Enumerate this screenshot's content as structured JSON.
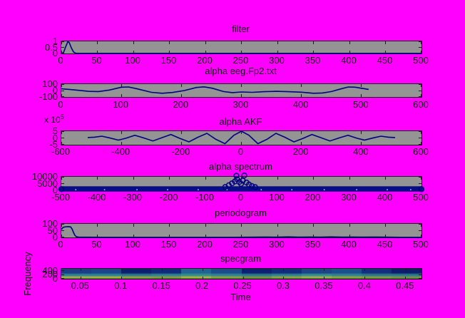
{
  "figure": {
    "background": "#ff00ff",
    "axes_background": "#949494",
    "axis_border_color": "#1b1b1b",
    "line_color": "#000080",
    "marker_color": "#000080",
    "band_color": "#0a0e86",
    "speckle_color": "#c9cde6"
  },
  "chart_data": [
    {
      "type": "line",
      "title": "filter",
      "xlim": [
        0,
        500
      ],
      "xtick_values": [
        0,
        50,
        100,
        150,
        200,
        250,
        300,
        350,
        400,
        450,
        500
      ],
      "xtick_labels": [
        "0",
        "50",
        "100",
        "150",
        "200",
        "250",
        "300",
        "350",
        "400",
        "450",
        "500"
      ],
      "ylim": [
        0,
        1
      ],
      "ytick_values": [
        1,
        0.5,
        0
      ],
      "ytick_labels": [
        "1",
        "0.5",
        "0"
      ],
      "points": [
        [
          0,
          0.02
        ],
        [
          3,
          0.06
        ],
        [
          6,
          0.55
        ],
        [
          9,
          0.97
        ],
        [
          11,
          0.9
        ],
        [
          14,
          0.45
        ],
        [
          17,
          0.12
        ],
        [
          20,
          0.02
        ],
        [
          30,
          0.01
        ],
        [
          500,
          0.01
        ]
      ]
    },
    {
      "type": "line",
      "title": "alpha eeg.Fp2.txt",
      "xlim": [
        0,
        600
      ],
      "xtick_values": [
        0,
        100,
        200,
        300,
        400,
        500,
        600
      ],
      "xtick_labels": [
        "0",
        "100",
        "200",
        "300",
        "400",
        "500",
        "600"
      ],
      "ylim": [
        -100,
        100
      ],
      "ytick_values": [
        100,
        0,
        -100
      ],
      "ytick_labels": [
        "100",
        "0",
        "-100"
      ],
      "points": [
        [
          0,
          28
        ],
        [
          20,
          12
        ],
        [
          45,
          -12
        ],
        [
          62,
          -16
        ],
        [
          80,
          8
        ],
        [
          100,
          52
        ],
        [
          112,
          55
        ],
        [
          125,
          30
        ],
        [
          150,
          -28
        ],
        [
          168,
          -42
        ],
        [
          185,
          -30
        ],
        [
          205,
          0
        ],
        [
          225,
          48
        ],
        [
          238,
          58
        ],
        [
          252,
          35
        ],
        [
          270,
          -15
        ],
        [
          285,
          -32
        ],
        [
          300,
          -22
        ],
        [
          318,
          -28
        ],
        [
          338,
          -18
        ],
        [
          358,
          -12
        ],
        [
          378,
          -18
        ],
        [
          400,
          -25
        ],
        [
          420,
          -42
        ],
        [
          435,
          -38
        ],
        [
          450,
          -15
        ],
        [
          465,
          25
        ],
        [
          478,
          55
        ],
        [
          490,
          52
        ],
        [
          500,
          35
        ],
        [
          512,
          18
        ]
      ]
    },
    {
      "type": "line",
      "title": "alpha AKF",
      "multiplier_base": "x 10",
      "multiplier_exp": "5",
      "xlim": [
        -600,
        600
      ],
      "xtick_values": [
        -600,
        -400,
        -200,
        0,
        200,
        400,
        600
      ],
      "xtick_labels": [
        "-600",
        "-400",
        "-200",
        "0",
        "200",
        "400",
        "600"
      ],
      "ylim": [
        -5,
        5
      ],
      "ytick_values": [
        5,
        0,
        -5
      ],
      "ytick_labels": [
        "5",
        "0",
        "-5"
      ],
      "points": [
        [
          -512,
          0.3
        ],
        [
          -490,
          0.6
        ],
        [
          -465,
          1.3
        ],
        [
          -440,
          0.1
        ],
        [
          -410,
          -1.6
        ],
        [
          -385,
          -0.2
        ],
        [
          -355,
          2.0
        ],
        [
          -325,
          0
        ],
        [
          -295,
          -2.2
        ],
        [
          -265,
          0.2
        ],
        [
          -235,
          2.6
        ],
        [
          -205,
          -0.3
        ],
        [
          -175,
          -2.9
        ],
        [
          -145,
          0.5
        ],
        [
          -115,
          3.4
        ],
        [
          -85,
          -1
        ],
        [
          -55,
          -4.2
        ],
        [
          -25,
          2
        ],
        [
          0,
          5
        ],
        [
          25,
          2
        ],
        [
          55,
          -4.2
        ],
        [
          85,
          -1
        ],
        [
          115,
          3.4
        ],
        [
          145,
          0.5
        ],
        [
          175,
          -2.9
        ],
        [
          205,
          -0.3
        ],
        [
          235,
          2.6
        ],
        [
          265,
          0.2
        ],
        [
          295,
          -2.2
        ],
        [
          325,
          0
        ],
        [
          355,
          2.0
        ],
        [
          385,
          -0.2
        ],
        [
          410,
          -1.6
        ],
        [
          440,
          0.1
        ],
        [
          465,
          1.3
        ],
        [
          490,
          0.6
        ],
        [
          512,
          0.3
        ]
      ]
    },
    {
      "type": "scatter",
      "title": "alpha spectrum",
      "xlim": [
        -500,
        500
      ],
      "xtick_values": [
        -500,
        -400,
        -300,
        -200,
        -100,
        0,
        100,
        200,
        300,
        400,
        500
      ],
      "xtick_labels": [
        "-500",
        "-400",
        "-300",
        "-200",
        "-100",
        "0",
        "100",
        "200",
        "300",
        "400",
        "500"
      ],
      "ylim": [
        0,
        10000
      ],
      "ytick_values": [
        10000,
        5000,
        0
      ],
      "ytick_labels": [
        "10000",
        "5000",
        "0"
      ],
      "band": {
        "x_from": -500,
        "x_to": 500,
        "y_from": -900,
        "y_to": 3000
      },
      "speckle_x": [
        -460,
        -380,
        -290,
        -205,
        -120,
        -40,
        55,
        140,
        230,
        320,
        405,
        470
      ],
      "cluster_points": [
        [
          -45,
          2500
        ],
        [
          -35,
          3800
        ],
        [
          -26,
          5200
        ],
        [
          -18,
          6600
        ],
        [
          -12,
          8200
        ],
        [
          -14,
          10800
        ],
        [
          -6,
          6200
        ],
        [
          -1,
          4800
        ],
        [
          4,
          7200
        ],
        [
          8,
          11000
        ],
        [
          14,
          5800
        ],
        [
          21,
          4300
        ],
        [
          29,
          3200
        ],
        [
          38,
          2400
        ],
        [
          -500,
          900
        ],
        [
          500,
          900
        ]
      ],
      "marker_radius_px": 3.4
    },
    {
      "type": "line",
      "title": "periodogram",
      "xlim": [
        0,
        500
      ],
      "xtick_values": [
        0,
        50,
        100,
        150,
        200,
        250,
        300,
        350,
        400,
        450,
        500
      ],
      "xtick_labels": [
        "0",
        "50",
        "100",
        "150",
        "200",
        "250",
        "300",
        "350",
        "400",
        "450",
        "500"
      ],
      "ylim": [
        0,
        100
      ],
      "ytick_values": [
        100,
        50,
        0
      ],
      "ytick_labels": [
        "100",
        "50",
        "0"
      ],
      "points": [
        [
          0,
          58
        ],
        [
          2,
          72
        ],
        [
          4,
          77
        ],
        [
          7,
          79
        ],
        [
          10,
          80
        ],
        [
          13,
          77
        ],
        [
          15,
          62
        ],
        [
          17,
          35
        ],
        [
          19,
          14
        ],
        [
          21,
          5
        ],
        [
          24,
          2
        ],
        [
          60,
          1
        ],
        [
          120,
          1
        ],
        [
          180,
          1
        ],
        [
          240,
          1
        ],
        [
          270,
          2
        ],
        [
          285,
          3
        ],
        [
          300,
          2
        ],
        [
          315,
          4
        ],
        [
          330,
          2
        ],
        [
          345,
          3
        ],
        [
          360,
          2
        ],
        [
          375,
          4
        ],
        [
          390,
          2
        ],
        [
          405,
          3
        ],
        [
          420,
          2
        ],
        [
          435,
          3
        ],
        [
          450,
          2
        ],
        [
          470,
          1
        ],
        [
          500,
          1
        ]
      ]
    },
    {
      "type": "heatmap",
      "title": "specgram",
      "xlabel": "Time",
      "ylabel": "Frequency",
      "xlim": [
        0.026,
        0.4695
      ],
      "xtick_values": [
        0.05,
        0.1,
        0.15,
        0.2,
        0.25,
        0.3,
        0.35,
        0.4,
        0.45
      ],
      "xtick_labels": [
        "0.05",
        "0.1",
        "0.15",
        "0.2",
        "0.25",
        "0.3",
        "0.35",
        "0.4",
        "0.45"
      ],
      "ylim": [
        0,
        500
      ],
      "ytick_values": [
        400,
        200,
        0
      ],
      "ytick_labels": [
        "400",
        "200",
        "0"
      ],
      "bottom_edge_color": "#2f6f2f",
      "columns": [
        {
          "top": "#1c3c86",
          "mid": "#2e8494",
          "band": "#a9ae4b"
        },
        {
          "top": "#1c468c",
          "mid": "#2e8494",
          "band": "#b0b13e"
        },
        {
          "top": "#0f1f70",
          "mid": "#2a7b8e",
          "band": "#98a23c"
        },
        {
          "top": "#122a7a",
          "mid": "#2e8494",
          "band": "#8d9a3e"
        },
        {
          "top": "#1f6492",
          "mid": "#339090",
          "band": "#b0b13e"
        },
        {
          "top": "#1c4c8a",
          "mid": "#2e8494",
          "band": "#93a040"
        },
        {
          "top": "#0f2072",
          "mid": "#2a7b8e",
          "band": "#7e9140"
        },
        {
          "top": "#122d7c",
          "mid": "#2e8494",
          "band": "#98a23c"
        },
        {
          "top": "#1c4488",
          "mid": "#339090",
          "band": "#a9ae4b"
        },
        {
          "top": "#1c508c",
          "mid": "#2e8494",
          "band": "#98a23c"
        },
        {
          "top": "#152f7e",
          "mid": "#2a7b8e",
          "band": "#8d9a3e"
        },
        {
          "top": "#0d1c6c",
          "mid": "#2a7b8e",
          "band": "#7e9140"
        }
      ]
    }
  ]
}
